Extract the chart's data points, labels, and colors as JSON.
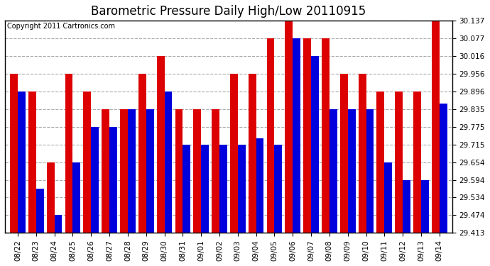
{
  "title": "Barometric Pressure Daily High/Low 20110915",
  "copyright": "Copyright 2011 Cartronics.com",
  "categories": [
    "08/22",
    "08/23",
    "08/24",
    "08/25",
    "08/26",
    "08/27",
    "08/28",
    "08/29",
    "08/30",
    "08/31",
    "09/01",
    "09/02",
    "09/03",
    "09/04",
    "09/05",
    "09/06",
    "09/07",
    "09/08",
    "09/09",
    "09/10",
    "09/11",
    "09/12",
    "09/13",
    "09/14"
  ],
  "highs": [
    29.956,
    29.896,
    29.654,
    29.956,
    29.896,
    29.835,
    29.835,
    29.956,
    30.016,
    29.835,
    29.835,
    29.835,
    29.956,
    29.956,
    30.077,
    30.137,
    30.077,
    30.077,
    29.956,
    29.956,
    29.896,
    29.896,
    29.896,
    30.137
  ],
  "lows": [
    29.896,
    29.564,
    29.474,
    29.654,
    29.775,
    29.775,
    29.835,
    29.835,
    29.896,
    29.715,
    29.715,
    29.715,
    29.715,
    29.735,
    29.715,
    30.077,
    30.016,
    29.835,
    29.835,
    29.835,
    29.654,
    29.594,
    29.594,
    29.855
  ],
  "high_color": "#dd0000",
  "low_color": "#0000dd",
  "bg_color": "#ffffff",
  "plot_bg_color": "#ffffff",
  "grid_color": "#aaaaaa",
  "yticks": [
    29.413,
    29.474,
    29.534,
    29.594,
    29.654,
    29.715,
    29.775,
    29.835,
    29.896,
    29.956,
    30.016,
    30.077,
    30.137
  ],
  "ymin": 29.413,
  "ymax": 30.137,
  "title_fontsize": 12,
  "tick_fontsize": 7.5,
  "copyright_fontsize": 7
}
